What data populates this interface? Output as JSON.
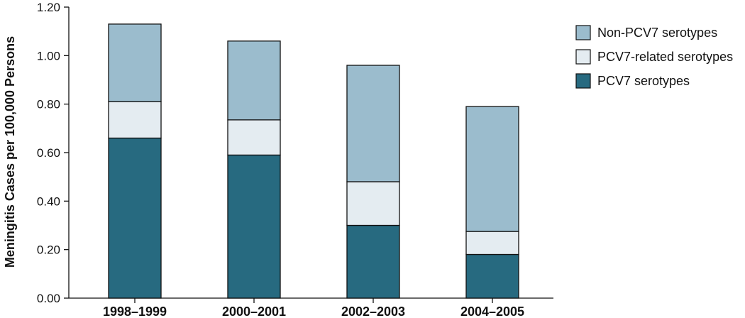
{
  "chart_data": {
    "type": "bar",
    "stacked": true,
    "categories": [
      "1998–1999",
      "2000–2001",
      "2002–2003",
      "2004–2005"
    ],
    "series": [
      {
        "name": "PCV7 serotypes",
        "color": "#276a80",
        "values": [
          0.66,
          0.59,
          0.3,
          0.18
        ]
      },
      {
        "name": "PCV7-related serotypes",
        "color": "#e4ecf1",
        "values": [
          0.15,
          0.145,
          0.18,
          0.095
        ]
      },
      {
        "name": "Non-PCV7 serotypes",
        "color": "#9bbccd",
        "values": [
          0.32,
          0.325,
          0.48,
          0.515
        ]
      }
    ],
    "legend_order": [
      2,
      1,
      0
    ],
    "title": "",
    "xlabel": "",
    "ylabel": "Meningitis Cases per 100,000 Persons",
    "ylim": [
      0,
      1.2
    ],
    "yticks": [
      "0.00",
      "0.20",
      "0.40",
      "0.60",
      "0.80",
      "1.00",
      "1.20"
    ],
    "legend_position": "top-right",
    "grid": false
  }
}
